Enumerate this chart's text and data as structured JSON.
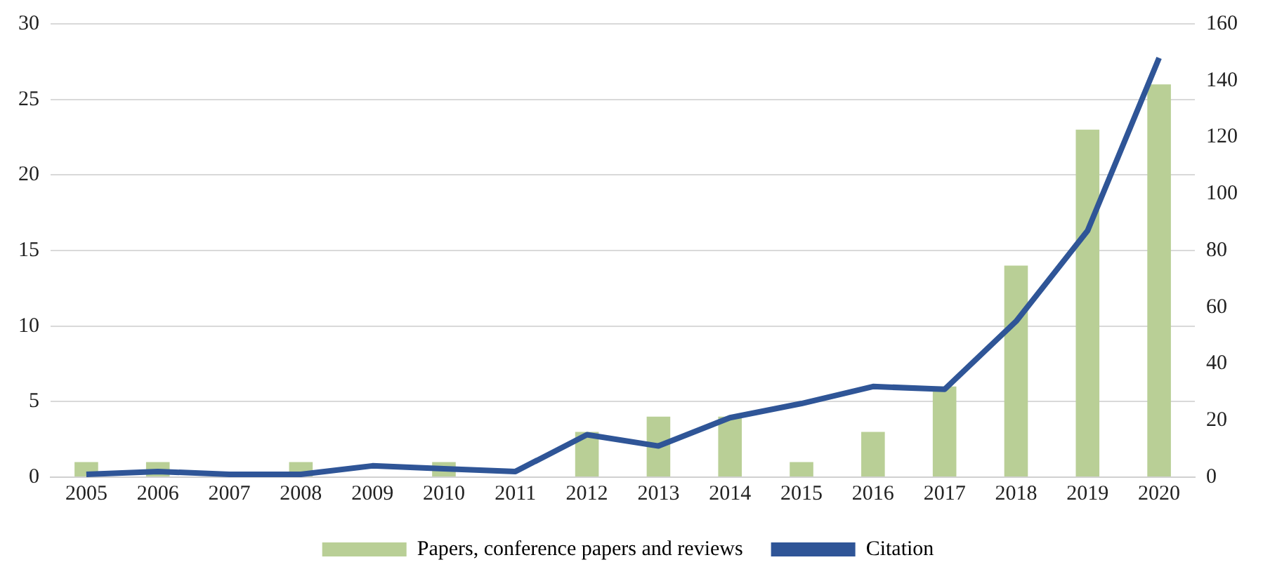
{
  "chart_data": {
    "type": "bar",
    "categories": [
      "2005",
      "2006",
      "2007",
      "2008",
      "2009",
      "2010",
      "2011",
      "2012",
      "2013",
      "2014",
      "2015",
      "2016",
      "2017",
      "2018",
      "2019",
      "2020"
    ],
    "series": [
      {
        "name": "Papers, conference papers and reviews",
        "color": "#b9cf96",
        "values": [
          1,
          1,
          0,
          1,
          0,
          1,
          0,
          3,
          4,
          4,
          1,
          3,
          6,
          14,
          23,
          26
        ]
      },
      {
        "name": "Citation",
        "type": "line",
        "axis": "y2",
        "color": "#2f5597",
        "values": [
          1,
          2,
          1,
          1,
          4,
          3,
          2,
          15,
          11,
          21,
          26,
          32,
          31,
          55,
          87,
          148
        ]
      }
    ],
    "ylim": [
      0,
      30
    ],
    "yticks": [
      0,
      5,
      10,
      15,
      20,
      25,
      30
    ],
    "y2lim": [
      0,
      160
    ],
    "y2ticks": [
      0,
      20,
      40,
      60,
      80,
      100,
      120,
      140,
      160
    ],
    "grid": "y",
    "legend": "bottom",
    "marker": "none"
  }
}
